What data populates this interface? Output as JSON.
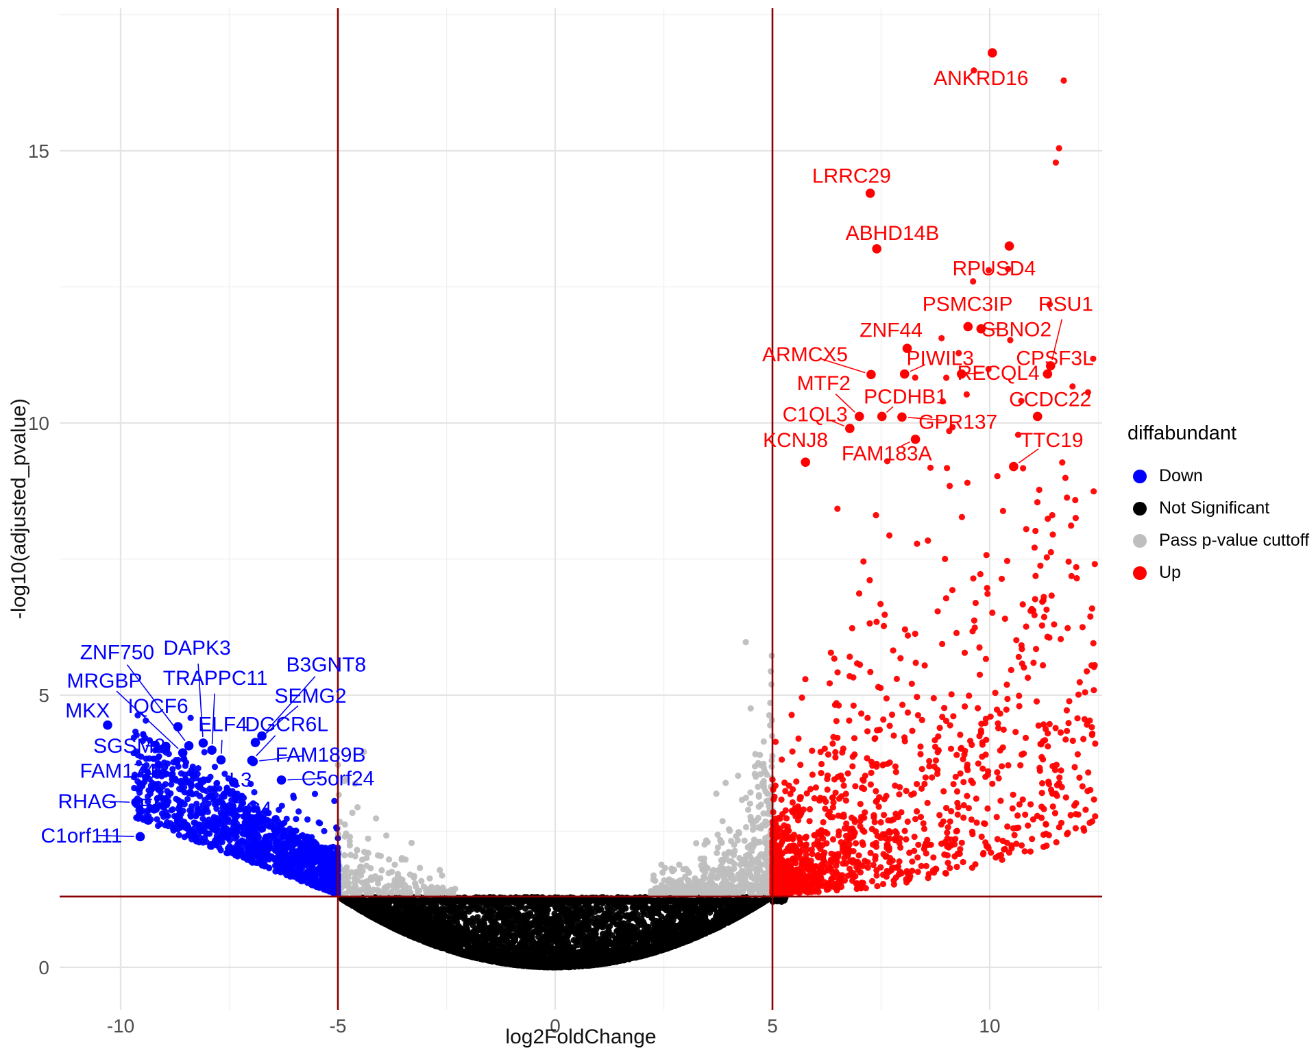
{
  "colors": {
    "down": "#0000FF",
    "not_significant": "#000000",
    "pass_pvalue": "#BEBEBE",
    "up": "#FF0000",
    "cutoff_line": "#8B0000",
    "tick_text": "#4D4D4D",
    "grid_major": "#E4E4E4",
    "grid_minor": "#F1F1F1"
  },
  "chart_data": {
    "type": "scatter",
    "title": "",
    "xlabel": "log2FoldChange",
    "ylabel": "-log10(adjusted_pvalue)",
    "xlim": [
      -11.4,
      12.6
    ],
    "ylim": [
      -0.78,
      17.62
    ],
    "x_ticks": [
      -10,
      -5,
      0,
      5,
      10
    ],
    "y_ticks": [
      0,
      5,
      10,
      15
    ],
    "x_minor": [
      -7.5,
      -2.5,
      2.5,
      7.5,
      12.5
    ],
    "y_minor": [
      2.5,
      7.5,
      12.5,
      17.5
    ],
    "grid": true,
    "legend": {
      "title": "diffabundant",
      "position": "right",
      "items": [
        {
          "label": "Down",
          "color": "#0000FF"
        },
        {
          "label": "Not Significant",
          "color": "#000000"
        },
        {
          "label": "Pass p-value cuttoff",
          "color": "#BEBEBE"
        },
        {
          "label": "Up",
          "color": "#FF0000"
        }
      ]
    },
    "cutoffs": {
      "color": "#8B0000",
      "vertical_x": [
        -5,
        5
      ],
      "horizontal_y": 1.3
    },
    "labeled_genes": {
      "up": [
        {
          "gene": "ANKRD16",
          "x": 10.06,
          "y": 16.8,
          "lx": 9.8,
          "ly": 16.35
        },
        {
          "gene": "LRRC29",
          "x": 7.25,
          "y": 14.22,
          "lx": 6.82,
          "ly": 14.55
        },
        {
          "gene": "ABHD14B",
          "x": 7.4,
          "y": 13.2,
          "lx": 7.76,
          "ly": 13.5
        },
        {
          "gene": "RPUSD4",
          "x": 10.45,
          "y": 13.25,
          "lx": 10.1,
          "ly": 12.85
        },
        {
          "gene": "PSMC3IP",
          "x": 9.5,
          "y": 11.77,
          "lx": 9.49,
          "ly": 12.2
        },
        {
          "gene": "RSU1",
          "x": 11.4,
          "y": 11.05,
          "lx": 11.75,
          "ly": 12.2
        },
        {
          "gene": "ZNF44",
          "x": 8.1,
          "y": 11.37,
          "lx": 7.73,
          "ly": 11.72
        },
        {
          "gene": "SBNO2",
          "x": 9.8,
          "y": 11.73,
          "lx": 10.62,
          "ly": 11.73
        },
        {
          "gene": "ARMCX5",
          "x": 7.27,
          "y": 10.89,
          "lx": 5.75,
          "ly": 11.27
        },
        {
          "gene": "PIWIL3",
          "x": 8.04,
          "y": 10.9,
          "lx": 8.86,
          "ly": 11.2
        },
        {
          "gene": "CPSF3L",
          "x": 11.33,
          "y": 10.9,
          "lx": 11.5,
          "ly": 11.2
        },
        {
          "gene": "MTF2",
          "x": 7.0,
          "y": 10.12,
          "lx": 6.18,
          "ly": 10.74
        },
        {
          "gene": "RECQL4",
          "x": 9.35,
          "y": 10.9,
          "lx": 10.2,
          "ly": 10.93
        },
        {
          "gene": "PCDHB1",
          "x": 7.52,
          "y": 10.12,
          "lx": 8.06,
          "ly": 10.5
        },
        {
          "gene": "C1QL3",
          "x": 6.78,
          "y": 9.9,
          "lx": 5.98,
          "ly": 10.17
        },
        {
          "gene": "GPR137",
          "x": 7.98,
          "y": 10.11,
          "lx": 9.27,
          "ly": 10.03
        },
        {
          "gene": "CCDC22",
          "x": 11.1,
          "y": 10.12,
          "lx": 11.39,
          "ly": 10.45
        },
        {
          "gene": "KCNJ8",
          "x": 5.76,
          "y": 9.28,
          "lx": 5.53,
          "ly": 9.7
        },
        {
          "gene": "FAM183A",
          "x": 8.29,
          "y": 9.7,
          "lx": 7.63,
          "ly": 9.45
        },
        {
          "gene": "TTC19",
          "x": 10.55,
          "y": 9.2,
          "lx": 11.43,
          "ly": 9.7
        }
      ],
      "down": [
        {
          "gene": "ZNF750",
          "x": -8.43,
          "y": 4.07,
          "lx": -10.08,
          "ly": 5.8
        },
        {
          "gene": "DAPK3",
          "x": -8.1,
          "y": 4.12,
          "lx": -8.24,
          "ly": 5.88
        },
        {
          "gene": "MRGBP",
          "x": -8.57,
          "y": 3.94,
          "lx": -10.37,
          "ly": 5.28
        },
        {
          "gene": "TRAPPC11",
          "x": -7.9,
          "y": 3.99,
          "lx": -7.82,
          "ly": 5.33
        },
        {
          "gene": "B3GNT8",
          "x": -6.75,
          "y": 4.25,
          "lx": -5.27,
          "ly": 5.57
        },
        {
          "gene": "MKX",
          "x": -10.3,
          "y": 4.45,
          "lx": -10.76,
          "ly": 4.73
        },
        {
          "gene": "IQCF6",
          "x": -8.68,
          "y": 4.42,
          "lx": -9.14,
          "ly": 4.81
        },
        {
          "gene": "SEMG2",
          "x": -6.9,
          "y": 4.13,
          "lx": -5.63,
          "ly": 5.0
        },
        {
          "gene": "SGSM2",
          "x": -8.96,
          "y": 4.06,
          "lx": -9.8,
          "ly": 4.08
        },
        {
          "gene": "ELF4",
          "x": -7.69,
          "y": 3.81,
          "lx": -7.65,
          "ly": 4.48
        },
        {
          "gene": "DGCR6L",
          "x": -6.98,
          "y": 3.8,
          "lx": -6.18,
          "ly": 4.48
        },
        {
          "gene": "FAM174B",
          "x": -9.16,
          "y": 3.55,
          "lx": -9.9,
          "ly": 3.62
        },
        {
          "gene": "FAM189B",
          "x": -6.95,
          "y": 3.78,
          "lx": -5.4,
          "ly": 3.92
        },
        {
          "gene": "L3",
          "x": -7.4,
          "y": 3.4,
          "lx": -7.24,
          "ly": 3.46
        },
        {
          "gene": "C5orf24",
          "x": -6.3,
          "y": 3.44,
          "lx": -5.0,
          "ly": 3.48
        },
        {
          "gene": "RHAG",
          "x": -9.65,
          "y": 3.03,
          "lx": -10.76,
          "ly": 3.06
        },
        {
          "gene": "EP",
          "x": -9.2,
          "y": 2.92,
          "lx": -9.25,
          "ly": 2.98
        },
        {
          "gene": "EC4",
          "x": -7.1,
          "y": 2.88,
          "lx": -6.98,
          "ly": 2.92
        },
        {
          "gene": "C1orf111",
          "x": -9.55,
          "y": 2.4,
          "lx": -10.9,
          "ly": 2.43
        }
      ]
    },
    "point_cloud": {
      "seed": 42,
      "radius": 4.6,
      "groups": [
        {
          "name": "not_significant",
          "color": "#000000",
          "n": 4200,
          "kind": "black"
        },
        {
          "name": "ns_cutoff_band",
          "color": "#000000",
          "n": 800,
          "kind": "band"
        },
        {
          "name": "pass_right",
          "color": "#BEBEBE",
          "n": 560,
          "kind": "gray_r"
        },
        {
          "name": "pass_left",
          "color": "#BEBEBE",
          "n": 190,
          "kind": "gray_l"
        },
        {
          "name": "down",
          "color": "#0000FF",
          "n": 1450,
          "kind": "blue"
        },
        {
          "name": "up",
          "color": "#FF0000",
          "n": 1500,
          "kind": "red"
        },
        {
          "name": "up_right_edge",
          "color": "#FF0000",
          "n": 34,
          "kind": "arc"
        }
      ]
    }
  }
}
